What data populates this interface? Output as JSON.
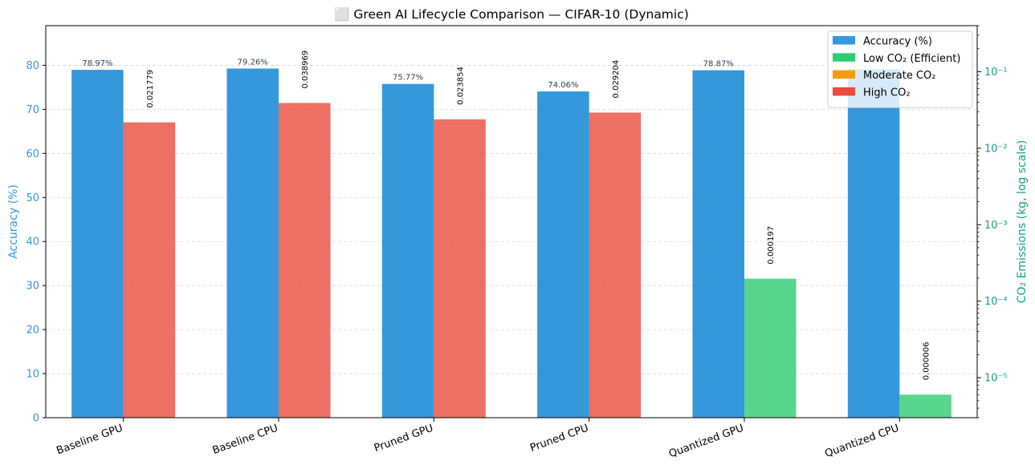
{
  "chart_data": {
    "type": "bar",
    "title": "⬜ Green AI Lifecycle Comparison — CIFAR-10 (Dynamic)",
    "categories": [
      "Baseline GPU",
      "Baseline CPU",
      "Pruned GPU",
      "Pruned CPU",
      "Quantized GPU",
      "Quantized CPU"
    ],
    "ylabel": "Accuracy (%)",
    "y2label": "CO₂ Emissions (kg, log scale)",
    "ylim": [
      0,
      89
    ],
    "y2lim": [
      3e-06,
      0.4
    ],
    "y2scale": "log",
    "yticks": [
      "0",
      "10",
      "20",
      "30",
      "40",
      "50",
      "60",
      "70",
      "80"
    ],
    "y2ticks": [
      "10⁻⁵",
      "10⁻⁴",
      "10⁻³",
      "10⁻²",
      "10⁻¹"
    ],
    "grid": true,
    "legend_position": "top-right",
    "series": [
      {
        "name": "Accuracy (%)",
        "axis": "left",
        "color": "#3498db",
        "values": [
          78.97,
          79.26,
          75.77,
          74.06,
          78.87,
          79.1
        ],
        "labels": [
          "78.97%",
          "79.26%",
          "75.77%",
          "74.06%",
          "78.87%",
          ""
        ]
      },
      {
        "name": "CO₂",
        "axis": "right",
        "values": [
          0.021779,
          0.038969,
          0.023854,
          0.029204,
          0.000197,
          6e-06
        ],
        "labels": [
          "0.021779",
          "0.038969",
          "0.023854",
          "0.029204",
          "0.000197",
          "0.000006"
        ],
        "colors": [
          "#e74c3c",
          "#e74c3c",
          "#e74c3c",
          "#e74c3c",
          "#2ecc71",
          "#2ecc71"
        ]
      }
    ],
    "legend": [
      {
        "label": "Accuracy (%)",
        "color": "#3498db"
      },
      {
        "label": "Low CO₂ (Efficient)",
        "color": "#2ecc71"
      },
      {
        "label": "Moderate CO₂",
        "color": "#f39c12"
      },
      {
        "label": "High CO₂",
        "color": "#e74c3c"
      }
    ],
    "colors": {
      "left_axis": "#3498db",
      "right_axis": "#16a085"
    }
  }
}
